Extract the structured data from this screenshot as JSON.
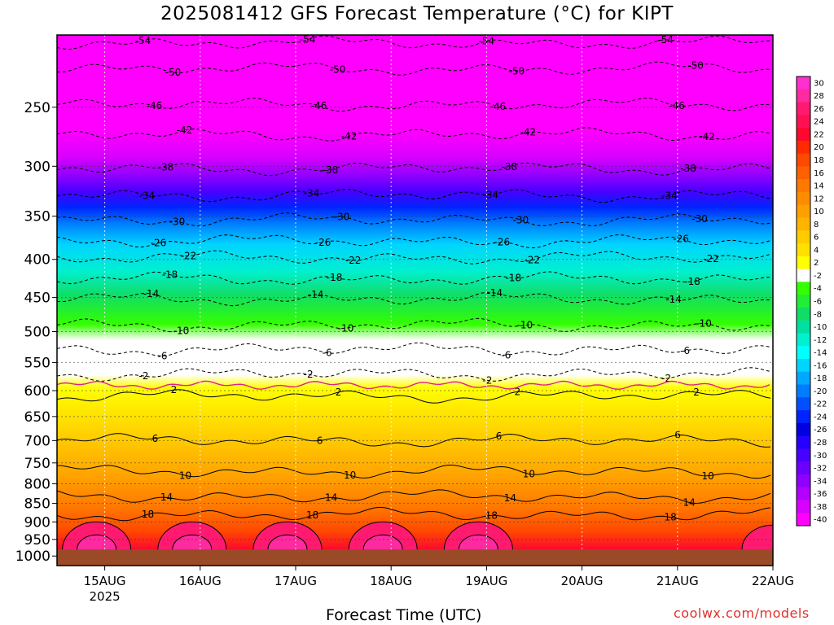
{
  "title": "2025081412 GFS Forecast Temperature (°C) for KIPT",
  "xlabel": "Forecast Time (UTC)",
  "credit": "coolwx.com/models",
  "chart_data": {
    "type": "heatmap",
    "title": "2025081412 GFS Forecast Temperature (°C) for KIPT",
    "xlabel": "Forecast Time (UTC)",
    "ylabel": "",
    "xlim": [
      "2025-08-14T12:00Z",
      "2025-08-22T00:00Z"
    ],
    "ylim_hPa": [
      1030,
      200
    ],
    "y_scale": "log",
    "x_ticks": [
      {
        "label": "15AUG",
        "sub": "2025",
        "t": "2025-08-15T00:00Z"
      },
      {
        "label": "16AUG",
        "sub": "",
        "t": "2025-08-16T00:00Z"
      },
      {
        "label": "17AUG",
        "sub": "",
        "t": "2025-08-17T00:00Z"
      },
      {
        "label": "18AUG",
        "sub": "",
        "t": "2025-08-18T00:00Z"
      },
      {
        "label": "19AUG",
        "sub": "",
        "t": "2025-08-19T00:00Z"
      },
      {
        "label": "20AUG",
        "sub": "",
        "t": "2025-08-20T00:00Z"
      },
      {
        "label": "21AUG",
        "sub": "",
        "t": "2025-08-21T00:00Z"
      },
      {
        "label": "22AUG",
        "sub": "",
        "t": "2025-08-22T00:00Z"
      }
    ],
    "y_ticks": [
      250,
      300,
      350,
      400,
      450,
      500,
      550,
      600,
      650,
      700,
      750,
      800,
      850,
      900,
      950,
      1000
    ],
    "surface_hPa": 980,
    "grid": "dotted",
    "colorbar": {
      "position": "right",
      "levels": [
        30,
        28,
        26,
        24,
        22,
        20,
        18,
        16,
        14,
        12,
        10,
        8,
        6,
        4,
        2,
        -2,
        -4,
        -6,
        -8,
        -10,
        -12,
        -14,
        -16,
        -18,
        -20,
        -22,
        -24,
        -26,
        -28,
        -30,
        -32,
        -34,
        -36,
        -38,
        -40
      ],
      "colors": [
        "#ff2fd0",
        "#ff2aa0",
        "#ff1a70",
        "#ff1050",
        "#ff0830",
        "#ff2a00",
        "#ff4800",
        "#ff6000",
        "#ff7800",
        "#ff8c00",
        "#ffa000",
        "#ffb400",
        "#ffcc00",
        "#ffe000",
        "#ffff00",
        "#ffffff",
        "#33ff00",
        "#22ee33",
        "#11dd66",
        "#00e0a0",
        "#00f0d0",
        "#00ffff",
        "#00d4ff",
        "#00a8ff",
        "#007cff",
        "#0050ff",
        "#0024ff",
        "#0000e0",
        "#2400ff",
        "#4800ff",
        "#6c00ff",
        "#9000ff",
        "#b400ff",
        "#d800ff",
        "#ff00ff"
      ]
    },
    "isotherms": [
      {
        "value": -54,
        "p_hPa": 205,
        "label": "-54"
      },
      {
        "value": -50,
        "p_hPa": 222,
        "label": "-50"
      },
      {
        "value": -46,
        "p_hPa": 248,
        "label": "-46"
      },
      {
        "value": -42,
        "p_hPa": 272,
        "label": "-42"
      },
      {
        "value": -38,
        "p_hPa": 302,
        "label": "-38"
      },
      {
        "value": -34,
        "p_hPa": 328,
        "label": "-34"
      },
      {
        "value": -30,
        "p_hPa": 354,
        "label": "-30"
      },
      {
        "value": -26,
        "p_hPa": 378,
        "label": "-26"
      },
      {
        "value": -22,
        "p_hPa": 398,
        "label": "-22"
      },
      {
        "value": -18,
        "p_hPa": 425,
        "label": "-18"
      },
      {
        "value": -14,
        "p_hPa": 452,
        "label": "-14"
      },
      {
        "value": -10,
        "p_hPa": 490,
        "label": "-10"
      },
      {
        "value": -6,
        "p_hPa": 528,
        "label": "-6"
      },
      {
        "value": -2,
        "p_hPa": 570,
        "label": "-2"
      },
      {
        "value": 2,
        "p_hPa": 610,
        "label": "2"
      },
      {
        "value": 6,
        "p_hPa": 700,
        "label": "6"
      },
      {
        "value": 10,
        "p_hPa": 770,
        "label": "10"
      },
      {
        "value": 14,
        "p_hPa": 832,
        "label": "14"
      },
      {
        "value": 18,
        "p_hPa": 880,
        "label": "18"
      }
    ],
    "freezing_line_hPa": 590
  }
}
